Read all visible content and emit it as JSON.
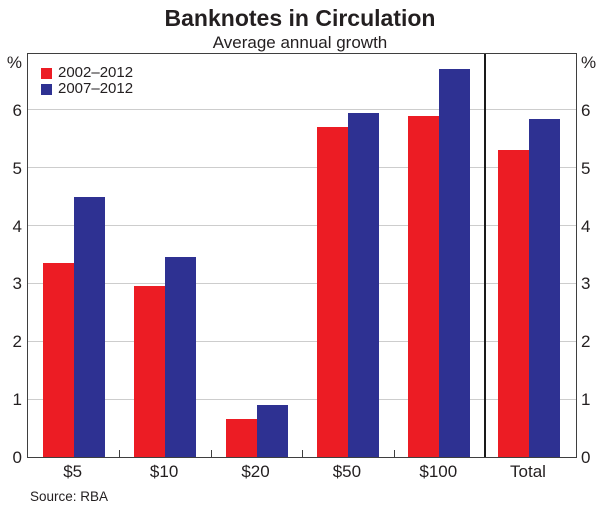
{
  "header": {
    "title": "Banknotes in Circulation",
    "subtitle": "Average annual growth"
  },
  "axes": {
    "left_unit": "%",
    "right_unit": "%",
    "yticks": [
      0,
      1,
      2,
      3,
      4,
      5,
      6
    ],
    "ymax": 7
  },
  "legend": {
    "items": [
      {
        "label": "2002–2012",
        "color": "#ec1c24"
      },
      {
        "label": "2007–2012",
        "color": "#2e3192"
      }
    ]
  },
  "footer": {
    "source": "Source: RBA"
  },
  "chart_data": {
    "type": "bar",
    "title": "Banknotes in Circulation",
    "subtitle": "Average annual growth",
    "categories": [
      "$5",
      "$10",
      "$20",
      "$50",
      "$100",
      "Total"
    ],
    "series": [
      {
        "name": "2002–2012",
        "color": "#ec1c24",
        "values": [
          3.35,
          2.95,
          0.65,
          5.7,
          5.9,
          5.3
        ]
      },
      {
        "name": "2007–2012",
        "color": "#2e3192",
        "values": [
          4.5,
          3.45,
          0.9,
          5.95,
          6.7,
          5.85
        ]
      }
    ],
    "xlabel": "",
    "ylabel": "%",
    "ylim": [
      0,
      7
    ],
    "yticks": [
      0,
      1,
      2,
      3,
      4,
      5,
      6
    ],
    "grid": true,
    "legend_position": "top-left",
    "separator_before_category": "Total",
    "source": "Source: RBA"
  }
}
